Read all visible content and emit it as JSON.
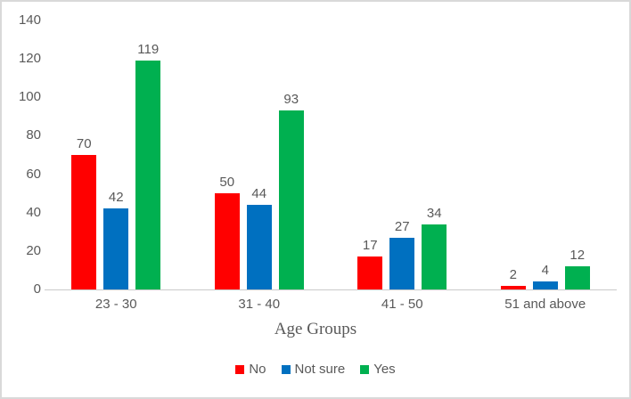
{
  "chart_data": {
    "type": "bar",
    "title": "",
    "categories": [
      "23 - 30",
      "31 - 40",
      "41 - 50",
      "51 and above"
    ],
    "series": [
      {
        "name": "No",
        "color": "#FF0000",
        "values": [
          70,
          50,
          17,
          2
        ]
      },
      {
        "name": "Not sure",
        "color": "#0070C0",
        "values": [
          42,
          44,
          27,
          4
        ]
      },
      {
        "name": "Yes",
        "color": "#00B050",
        "values": [
          119,
          93,
          34,
          12
        ]
      }
    ],
    "xlabel": "Age Groups",
    "ylabel": "",
    "ylim": [
      0,
      140
    ],
    "ytick_step": 20,
    "grid": false,
    "legend_position": "bottom",
    "axis_line_color": "#c9c9c9",
    "label_color": "#595959"
  }
}
